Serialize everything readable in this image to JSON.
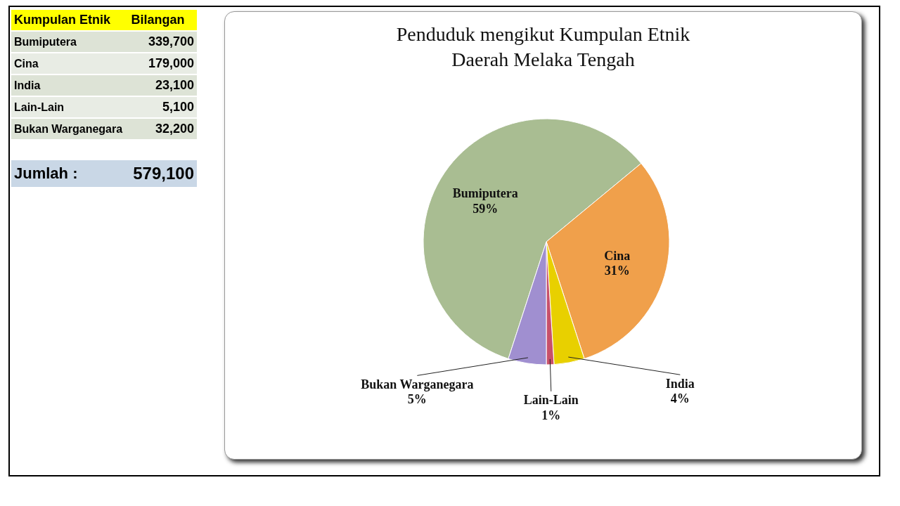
{
  "chart_data": {
    "type": "pie",
    "title": "Penduduk mengikut Kumpulan Etnik Daerah Melaka Tengah",
    "categories": [
      "Bumiputera",
      "Cina",
      "India",
      "Lain-Lain",
      "Bukan Warganegara"
    ],
    "values": [
      59,
      31,
      4,
      1,
      5
    ],
    "value_labels": [
      "59%",
      "31%",
      "4%",
      "1%",
      "5%"
    ],
    "colors": [
      "#a9bd92",
      "#f0a04b",
      "#e8d000",
      "#c8506a",
      "#a08fd0"
    ],
    "annotations": [
      "Kumpulan Etnik",
      "Bilangan",
      "339,700",
      "179,000",
      "23,100",
      "5,100",
      "32,200",
      "Jumlah :",
      "579,100"
    ],
    "legend": false
  }
}
